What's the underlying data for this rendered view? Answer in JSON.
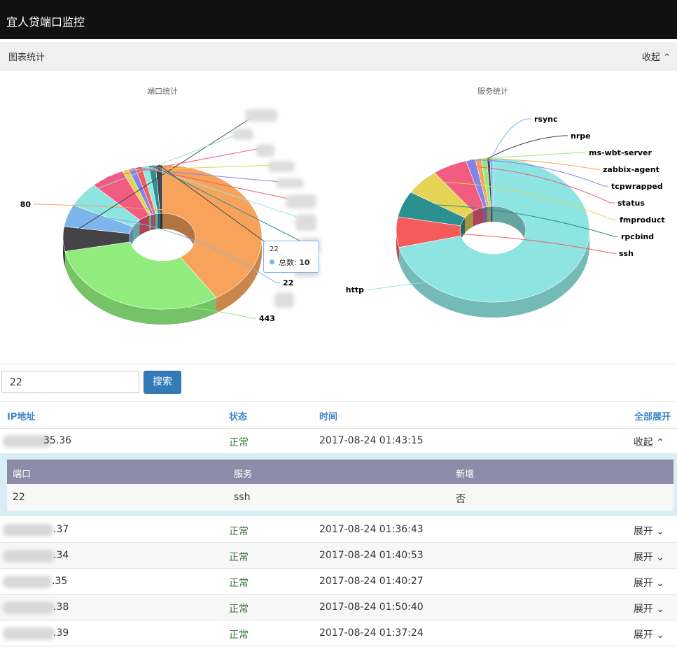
{
  "app_title": "宜人贷端口监控",
  "panel": {
    "title": "图表统计",
    "collapse_label": "收起"
  },
  "chart_data": [
    {
      "type": "pie",
      "title": "端口统计",
      "slices": [
        {
          "name": "80",
          "value": 37,
          "color": "#f7a35c"
        },
        {
          "name": "443",
          "value": 28,
          "color": "#90ed7d"
        },
        {
          "name": "",
          "value": 5,
          "color": "#434348"
        },
        {
          "name": "22",
          "value": 4.5,
          "color": "#7cb5ec"
        },
        {
          "name": "",
          "value": 5,
          "color": "#8ee4e0"
        },
        {
          "name": "",
          "value": 5,
          "color": "#f15c80"
        },
        {
          "name": "",
          "value": 1,
          "color": "#e4d354"
        },
        {
          "name": "",
          "value": 1,
          "color": "#8085e9"
        },
        {
          "name": "",
          "value": 1,
          "color": "#f45b5b"
        },
        {
          "name": "",
          "value": 1,
          "color": "#91e8e1"
        },
        {
          "name": "",
          "value": 1,
          "color": "#2b908f"
        },
        {
          "name": "",
          "value": 1,
          "color": "#434348"
        }
      ]
    },
    {
      "type": "pie",
      "title": "服务统计",
      "slices": [
        {
          "name": "http",
          "value": 73,
          "color": "#8ee4e0"
        },
        {
          "name": "ssh",
          "value": 7,
          "color": "#f45b5b"
        },
        {
          "name": "rpcbind",
          "value": 6,
          "color": "#2b908f"
        },
        {
          "name": "fmproduct",
          "value": 6,
          "color": "#e4d354"
        },
        {
          "name": "status",
          "value": 6,
          "color": "#f15c80"
        },
        {
          "name": "tcpwrapped",
          "value": 1.6,
          "color": "#8085e9"
        },
        {
          "name": "zabbix-agent",
          "value": 1,
          "color": "#f7a35c"
        },
        {
          "name": "ms-wbt-server",
          "value": 1,
          "color": "#90ed7d"
        },
        {
          "name": "nrpe",
          "value": 0.5,
          "color": "#434348"
        },
        {
          "name": "rsync",
          "value": 0.5,
          "color": "#7cb5ec"
        }
      ]
    }
  ],
  "tooltip": {
    "title": "22",
    "label": "总数:",
    "value": "10"
  },
  "search": {
    "value": "22",
    "button": "搜索"
  },
  "table": {
    "headers": {
      "ip": "IP地址",
      "status": "状态",
      "time": "时间",
      "expand_all": "全部展开"
    },
    "rows": [
      {
        "ip": "35.36",
        "status": "正常",
        "time": "2017-08-24 01:43:15",
        "toggle": "收起"
      },
      {
        "ip": ".37",
        "status": "正常",
        "time": "2017-08-24 01:36:43",
        "toggle": "展开"
      },
      {
        "ip": ".34",
        "status": "正常",
        "time": "2017-08-24 01:40:53",
        "toggle": "展开"
      },
      {
        "ip": ".35",
        "status": "正常",
        "time": "2017-08-24 01:40:27",
        "toggle": "展开"
      },
      {
        "ip": ".38",
        "status": "正常",
        "time": "2017-08-24 01:50:40",
        "toggle": "展开"
      },
      {
        "ip": ".39",
        "status": "正常",
        "time": "2017-08-24 01:37:24",
        "toggle": "展开"
      }
    ],
    "detail": {
      "headers": {
        "port": "端口",
        "service": "服务",
        "new": "新增"
      },
      "row": {
        "port": "22",
        "service": "ssh",
        "new": "否"
      }
    }
  }
}
